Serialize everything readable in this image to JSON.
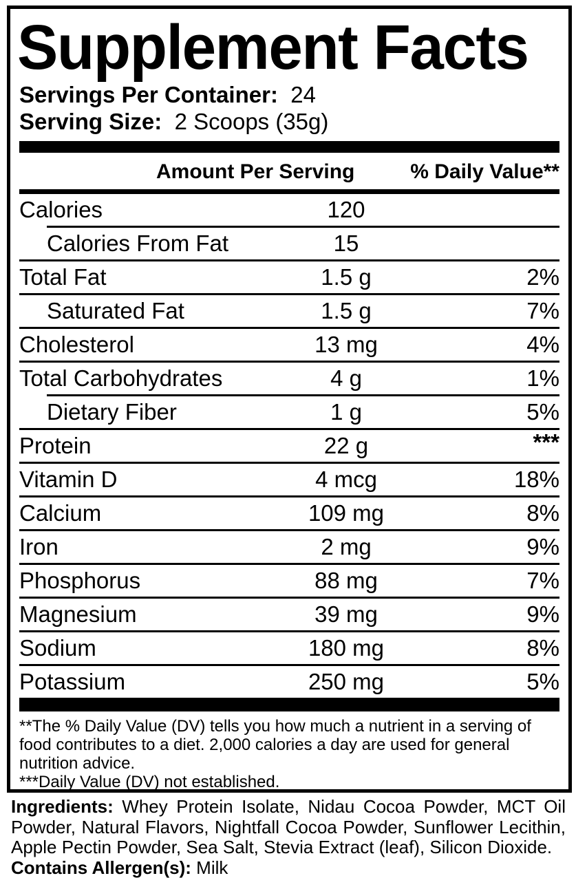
{
  "label": {
    "title": "Supplement Facts",
    "servings_per_container_label": "Servings Per Container:",
    "servings_per_container_value": "24",
    "serving_size_label": "Serving Size:",
    "serving_size_value": "2 Scoops (35g)",
    "columns": {
      "amount": "Amount Per Serving",
      "daily_value": "% Daily Value**"
    },
    "rows": [
      {
        "name": "Calories",
        "amount": "120",
        "dv": "",
        "indent": false,
        "divider": "none"
      },
      {
        "name": "Calories From Fat",
        "amount": "15",
        "dv": "",
        "indent": true,
        "divider": "indent"
      },
      {
        "name": "Total Fat",
        "amount": "1.5 g",
        "dv": "2%",
        "indent": false,
        "divider": "full"
      },
      {
        "name": "Saturated Fat",
        "amount": "1.5 g",
        "dv": "7%",
        "indent": true,
        "divider": "full"
      },
      {
        "name": "Cholesterol",
        "amount": "13 mg",
        "dv": "4%",
        "indent": false,
        "divider": "full"
      },
      {
        "name": "Total Carbohydrates",
        "amount": "4 g",
        "dv": "1%",
        "indent": false,
        "divider": "full"
      },
      {
        "name": "Dietary Fiber",
        "amount": "1 g",
        "dv": "5%",
        "indent": true,
        "divider": "indent"
      },
      {
        "name": "Protein",
        "amount": "22 g",
        "dv": "***",
        "indent": false,
        "divider": "full"
      },
      {
        "name": "Vitamin D",
        "amount": "4 mcg",
        "dv": "18%",
        "indent": false,
        "divider": "full"
      },
      {
        "name": "Calcium",
        "amount": "109 mg",
        "dv": "8%",
        "indent": false,
        "divider": "full"
      },
      {
        "name": "Iron",
        "amount": "2 mg",
        "dv": "9%",
        "indent": false,
        "divider": "full"
      },
      {
        "name": "Phosphorus",
        "amount": "88 mg",
        "dv": "7%",
        "indent": false,
        "divider": "full"
      },
      {
        "name": "Magnesium",
        "amount": "39 mg",
        "dv": "9%",
        "indent": false,
        "divider": "full"
      },
      {
        "name": "Sodium",
        "amount": "180 mg",
        "dv": "8%",
        "indent": false,
        "divider": "full"
      },
      {
        "name": "Potassium",
        "amount": "250 mg",
        "dv": "5%",
        "indent": false,
        "divider": "full"
      }
    ],
    "footnotes": {
      "daily_value": "**The % Daily Value (DV) tells you how much a nutrient in a serving of food contributes to a diet. 2,000 calories a day are used for general nutrition advice.",
      "not_established": "***Daily Value (DV) not established."
    }
  },
  "ingredients": {
    "label": "Ingredients:",
    "text": " Whey Protein Isolate, Nidau Cocoa Powder, MCT Oil Powder, Natural Flavors, Nightfall Cocoa Powder, Sunflower Lecithin, Apple Pectin Powder, Sea Salt, Stevia Extract (leaf), Silicon Dioxide.",
    "allergen_label": "Contains Allergen(s):",
    "allergen_value": " Milk"
  },
  "colors": {
    "ink": "#000000",
    "background": "#ffffff"
  }
}
